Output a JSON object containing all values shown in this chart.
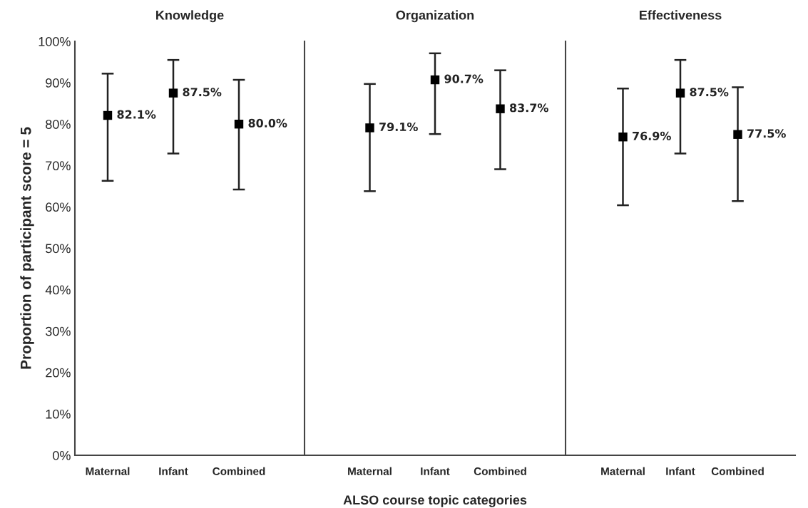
{
  "chart_data": [
    {
      "type": "scatter",
      "title": "Knowledge",
      "ylabel": "Proportion of participant score = 5",
      "categories": [
        "Maternal",
        "Infant",
        "Combined"
      ],
      "marker": "square",
      "color": "#000000",
      "values": [
        82.1,
        87.5,
        80.0
      ],
      "errors": [
        [
          66.3,
          92.2
        ],
        [
          72.9,
          95.5
        ],
        [
          64.2,
          90.7
        ]
      ],
      "value_labels": [
        "82.1%",
        "87.5%",
        "80.0%"
      ],
      "ylim": [
        0,
        100
      ],
      "yticks": [
        {
          "value": 0,
          "label": "0%"
        },
        {
          "value": 10,
          "label": "10%"
        },
        {
          "value": 20,
          "label": "20%"
        },
        {
          "value": 30,
          "label": "30%"
        },
        {
          "value": 40,
          "label": "40%"
        },
        {
          "value": 50,
          "label": "50%"
        },
        {
          "value": 60,
          "label": "60%"
        },
        {
          "value": 70,
          "label": "70%"
        },
        {
          "value": 80,
          "label": "80%"
        },
        {
          "value": 90,
          "label": "90%"
        },
        {
          "value": 100,
          "label": "100%"
        }
      ]
    },
    {
      "type": "scatter",
      "title": "Organization",
      "xlabel": "ALSO course topic categories",
      "categories": [
        "Maternal",
        "Infant",
        "Combined"
      ],
      "marker": "square",
      "color": "#000000",
      "values": [
        79.1,
        90.7,
        83.7
      ],
      "errors": [
        [
          63.8,
          89.7
        ],
        [
          77.6,
          97.1
        ],
        [
          69.1,
          93.0
        ]
      ],
      "value_labels": [
        "79.1%",
        "90.7%",
        "83.7%"
      ],
      "ylim": [
        0,
        100
      ],
      "tick_labels": "x"
    },
    {
      "type": "scatter",
      "title": "Effectiveness",
      "categories": [
        "Maternal",
        "Infant",
        "Combined"
      ],
      "marker": "square",
      "color": "#000000",
      "values": [
        76.9,
        87.5,
        77.5
      ],
      "errors": [
        [
          60.4,
          88.6
        ],
        [
          72.9,
          95.5
        ],
        [
          61.4,
          88.9
        ]
      ],
      "value_labels": [
        "76.9%",
        "87.5%",
        "77.5%"
      ],
      "ylim": [
        0,
        100
      ],
      "tick_labels": "x"
    }
  ]
}
